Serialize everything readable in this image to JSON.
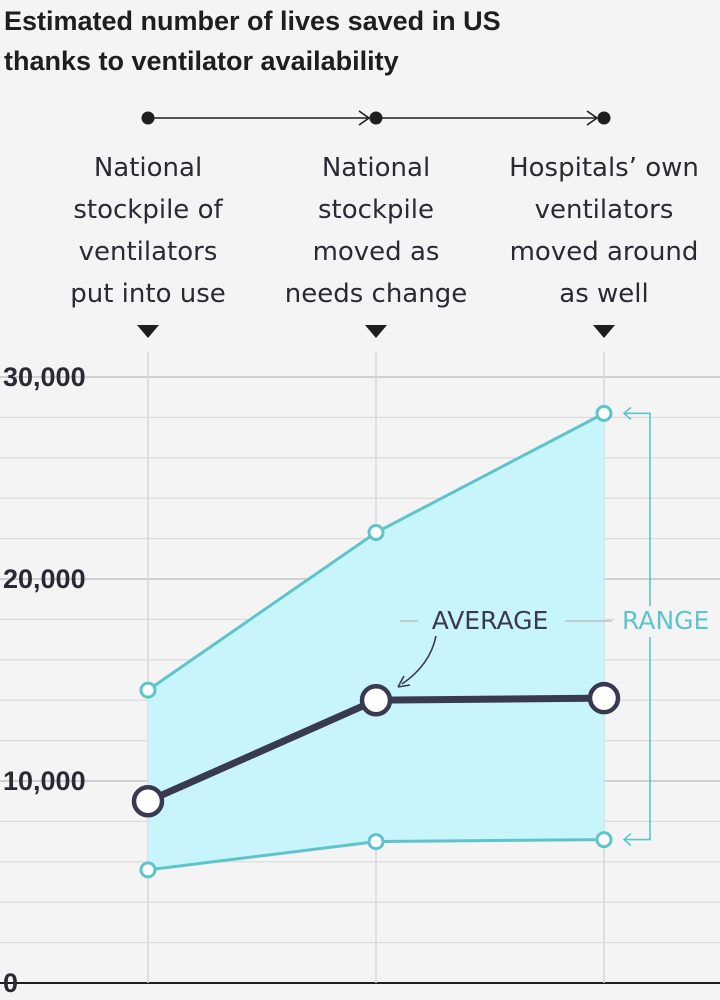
{
  "chart_data": {
    "type": "line",
    "title": "Estimated number of lives saved in US",
    "title_line2": "thanks to ventilator availability",
    "stages": [
      [
        "National",
        "stockpile of",
        "ventilators",
        "put into use"
      ],
      [
        "National",
        "stockpile",
        "moved as",
        "needs change"
      ],
      [
        "Hospitals’ own",
        "ventilators",
        "moved around",
        "as well"
      ]
    ],
    "x": [
      1,
      2,
      3
    ],
    "series": [
      {
        "name": "AVERAGE",
        "values": [
          9000,
          14000,
          14100
        ]
      },
      {
        "name": "RANGE upper",
        "values": [
          14500,
          22300,
          28200
        ]
      },
      {
        "name": "RANGE lower",
        "values": [
          5600,
          7000,
          7100
        ]
      }
    ],
    "ylim": [
      0,
      30000
    ],
    "yticks": [
      0,
      10000,
      20000,
      30000
    ],
    "ytick_labels": [
      "0",
      "10,000",
      "20,000",
      "30,000"
    ],
    "annotations": {
      "average": "AVERAGE",
      "range": "RANGE"
    },
    "colors": {
      "range_line": "#5ec4cc",
      "range_fill": "#c8f4fb",
      "average_line": "#373a50",
      "grid": "#d2d2d2",
      "text": "#2a2a35"
    }
  }
}
